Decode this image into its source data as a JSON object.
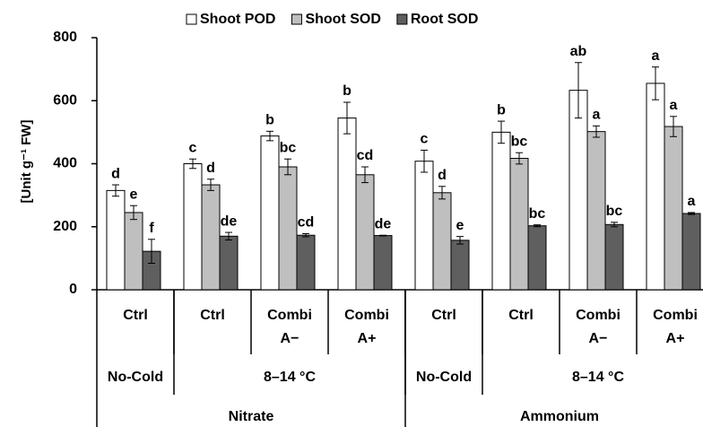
{
  "chart_data": {
    "type": "bar",
    "ylabel": "[Unit g⁻¹ FW]",
    "categories": [
      [
        "Ctrl"
      ],
      [
        "Ctrl"
      ],
      [
        "Combi",
        "A−"
      ],
      [
        "Combi",
        "A+"
      ],
      [
        "Ctrl"
      ],
      [
        "Ctrl"
      ],
      [
        "Combi",
        "A−"
      ],
      [
        "Combi",
        "A+"
      ]
    ],
    "temperature": [
      "No-Cold",
      "8–14 °C",
      null,
      null,
      "No-Cold",
      "8–14 °C",
      null,
      null
    ],
    "nitrogen": [
      "Nitrate",
      null,
      null,
      null,
      "Ammonium",
      null,
      null,
      null
    ],
    "series": [
      {
        "name": "Shoot POD",
        "color": "#ffffff",
        "values": [
          315,
          400,
          488,
          545,
          408,
          500,
          633,
          655
        ],
        "errors": [
          18,
          15,
          15,
          50,
          35,
          35,
          88,
          52
        ],
        "letters": [
          "d",
          "c",
          "b",
          "b",
          "c",
          "b",
          "ab",
          "a"
        ]
      },
      {
        "name": "Shoot SOD",
        "color": "#bfbfbf",
        "values": [
          245,
          333,
          390,
          365,
          308,
          417,
          502,
          518
        ],
        "errors": [
          22,
          18,
          25,
          25,
          20,
          18,
          18,
          32
        ],
        "letters": [
          "e",
          "d",
          "bc",
          "cd",
          "d",
          "bc",
          "a",
          "a"
        ]
      },
      {
        "name": "Root SOD",
        "color": "#5f5f5f",
        "values": [
          122,
          170,
          173,
          172,
          157,
          203,
          207,
          242
        ],
        "errors": [
          38,
          12,
          5,
          1,
          12,
          3,
          7,
          3
        ],
        "letters": [
          "f",
          "de",
          "cd",
          "de",
          "e",
          "bc",
          "bc",
          "a"
        ]
      }
    ],
    "ylim": [
      0,
      800
    ],
    "yticks": [
      0,
      200,
      400,
      600,
      800
    ],
    "legend": "top",
    "grid": false
  }
}
